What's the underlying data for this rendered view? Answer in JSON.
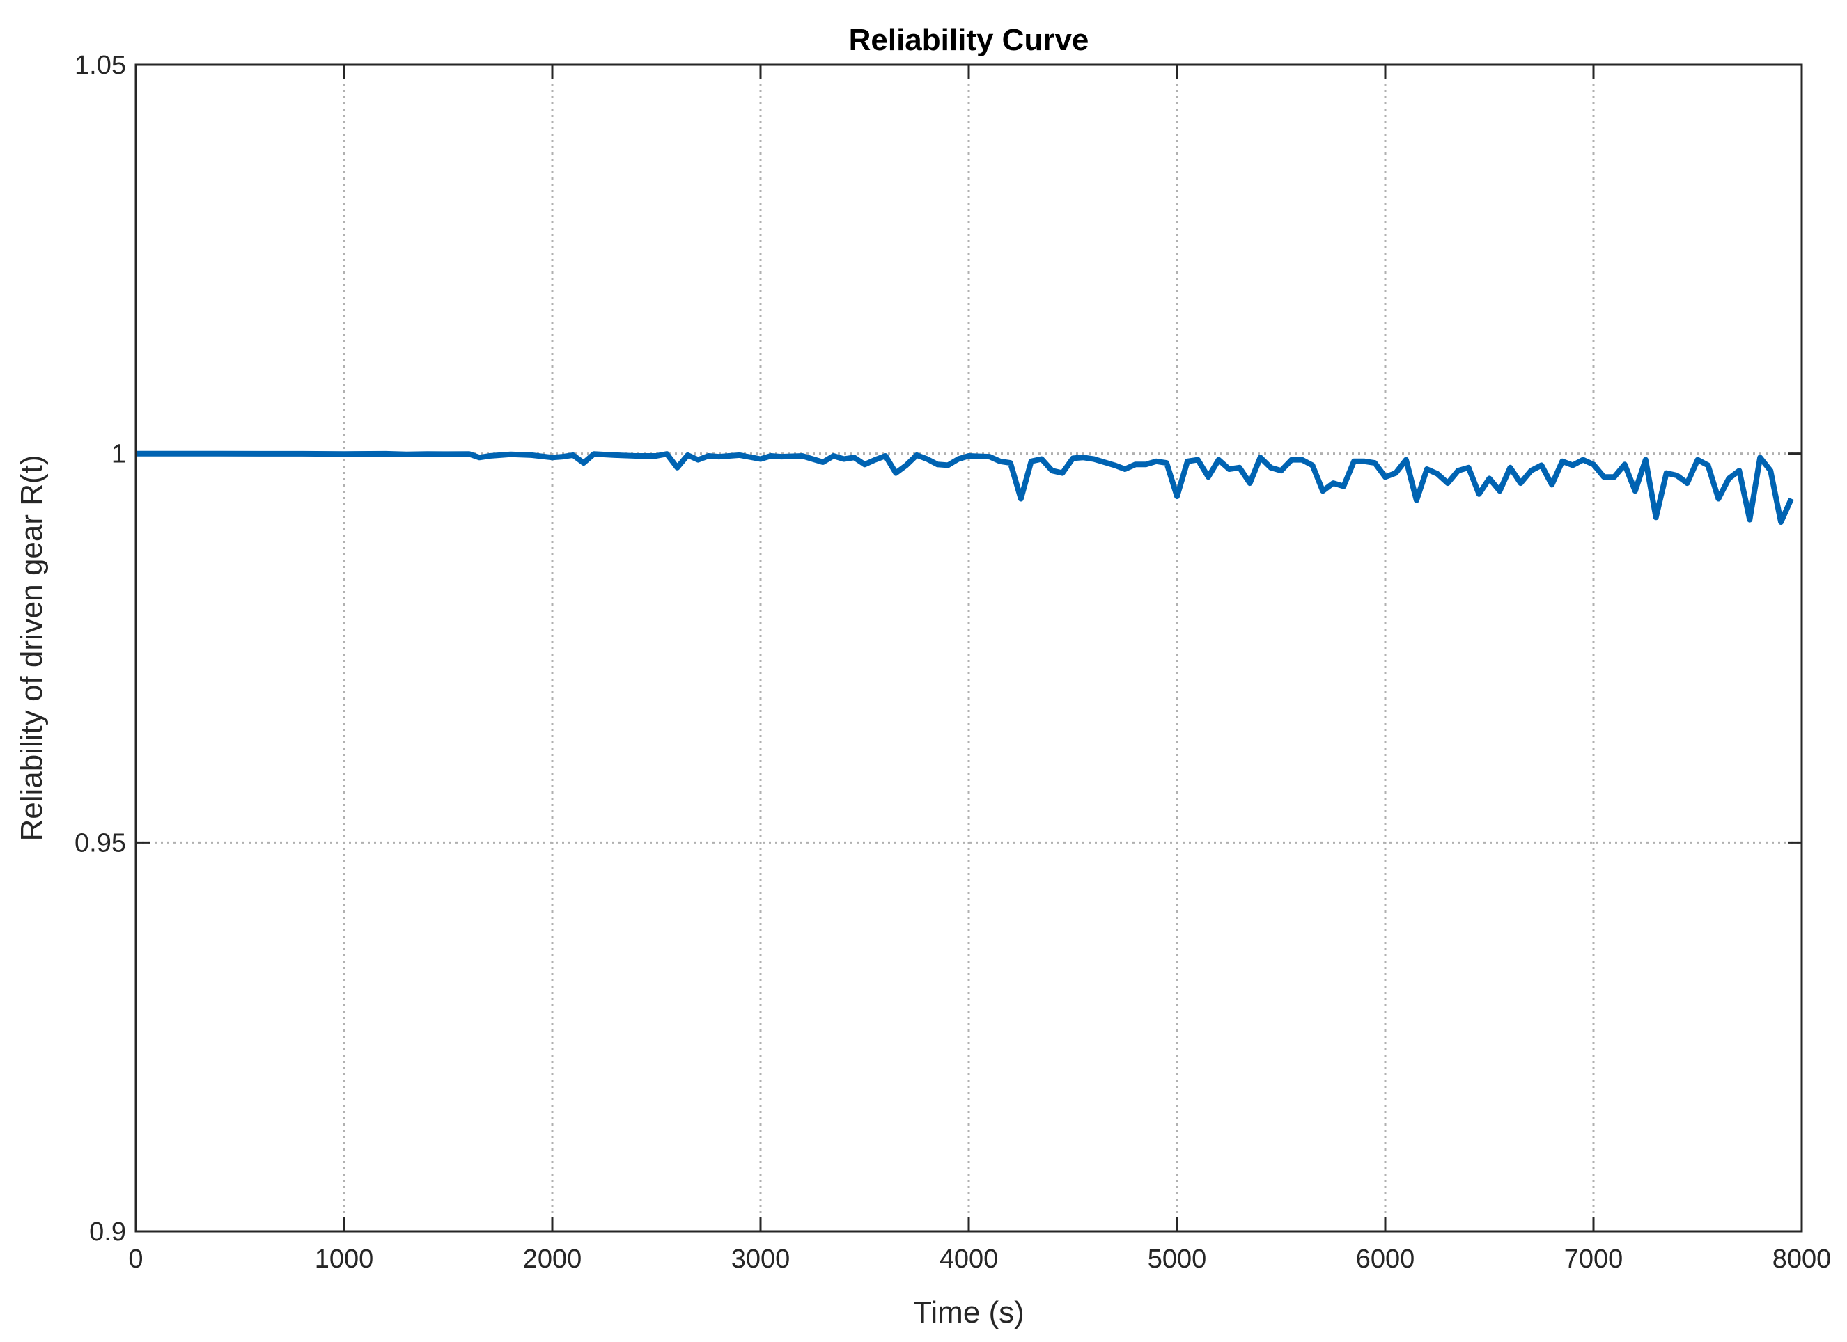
{
  "chart_data": {
    "type": "line",
    "title": "Reliability Curve",
    "xlabel": "Time (s)",
    "ylabel": "Reliability of driven gear R(t)",
    "xlim": [
      0,
      8000
    ],
    "ylim": [
      0.9,
      1.05
    ],
    "xticks": [
      "0",
      "1000",
      "2000",
      "3000",
      "4000",
      "5000",
      "6000",
      "7000",
      "8000"
    ],
    "xtick_values": [
      0,
      1000,
      2000,
      3000,
      4000,
      5000,
      6000,
      7000,
      8000
    ],
    "yticks": [
      "0.9",
      "0.95",
      "1",
      "1.05"
    ],
    "ytick_values": [
      0.9,
      0.95,
      1.0,
      1.05
    ],
    "grid": true,
    "line_color": "#0063B2",
    "series": [
      {
        "x": [
          0,
          200,
          400,
          600,
          800,
          1000,
          1200,
          1300,
          1400,
          1500,
          1600,
          1650,
          1700,
          1800,
          1900,
          2000,
          2050,
          2100,
          2150,
          2200,
          2300,
          2400,
          2500,
          2550,
          2600,
          2650,
          2700,
          2750,
          2800,
          2900,
          3000,
          3050,
          3100,
          3200,
          3300,
          3350,
          3400,
          3450,
          3500,
          3550,
          3600,
          3650,
          3700,
          3750,
          3800,
          3850,
          3900,
          3950,
          4000,
          4100,
          4150,
          4200,
          4250,
          4300,
          4350,
          4400,
          4450,
          4500,
          4550,
          4600,
          4700,
          4750,
          4800,
          4850,
          4900,
          4950,
          5000,
          5050,
          5100,
          5150,
          5200,
          5250,
          5300,
          5350,
          5400,
          5450,
          5500,
          5550,
          5600,
          5650,
          5700,
          5750,
          5800,
          5850,
          5900,
          5950,
          6000,
          6050,
          6100,
          6150,
          6200,
          6250,
          6300,
          6350,
          6400,
          6450,
          6500,
          6550,
          6600,
          6650,
          6700,
          6750,
          6800,
          6850,
          6900,
          6950,
          7000,
          7050,
          7100,
          7150,
          7200,
          7250,
          7300,
          7350,
          7400,
          7450,
          7500,
          7550,
          7600,
          7650,
          7700,
          7750,
          7800,
          7850,
          7900,
          7950
        ],
        "y": [
          1.0,
          1.0,
          1.0,
          0.99998,
          0.99998,
          0.99995,
          0.99998,
          0.9999,
          0.99995,
          0.99993,
          0.99995,
          0.9995,
          0.9997,
          0.9999,
          0.9998,
          0.9995,
          0.9996,
          0.9998,
          0.9988,
          0.99995,
          0.9998,
          0.9997,
          0.9997,
          0.99995,
          0.9982,
          0.9998,
          0.9992,
          0.9997,
          0.9996,
          0.9998,
          0.9993,
          0.9997,
          0.9996,
          0.9997,
          0.9989,
          0.9997,
          0.9993,
          0.9995,
          0.9986,
          0.9992,
          0.9997,
          0.9975,
          0.9985,
          0.9998,
          0.9993,
          0.9986,
          0.9985,
          0.9993,
          0.9997,
          0.9996,
          0.999,
          0.9988,
          0.9942,
          0.999,
          0.9993,
          0.9978,
          0.9975,
          0.9994,
          0.9995,
          0.9993,
          0.9985,
          0.998,
          0.9986,
          0.9986,
          0.999,
          0.9988,
          0.9945,
          0.999,
          0.9992,
          0.997,
          0.9992,
          0.998,
          0.9982,
          0.9962,
          0.9995,
          0.9982,
          0.9978,
          0.9992,
          0.9992,
          0.9985,
          0.9952,
          0.9962,
          0.9958,
          0.999,
          0.999,
          0.9988,
          0.997,
          0.9975,
          0.9992,
          0.994,
          0.998,
          0.9974,
          0.9962,
          0.9978,
          0.9982,
          0.9948,
          0.9968,
          0.9952,
          0.9982,
          0.9962,
          0.9978,
          0.9985,
          0.996,
          0.999,
          0.9985,
          0.9992,
          0.9986,
          0.997,
          0.997,
          0.9986,
          0.9952,
          0.9992,
          0.9918,
          0.9975,
          0.9972,
          0.9962,
          0.9992,
          0.9985,
          0.9942,
          0.9968,
          0.9978,
          0.9915,
          0.9995,
          0.9978,
          0.9912,
          0.9942
        ]
      }
    ]
  }
}
